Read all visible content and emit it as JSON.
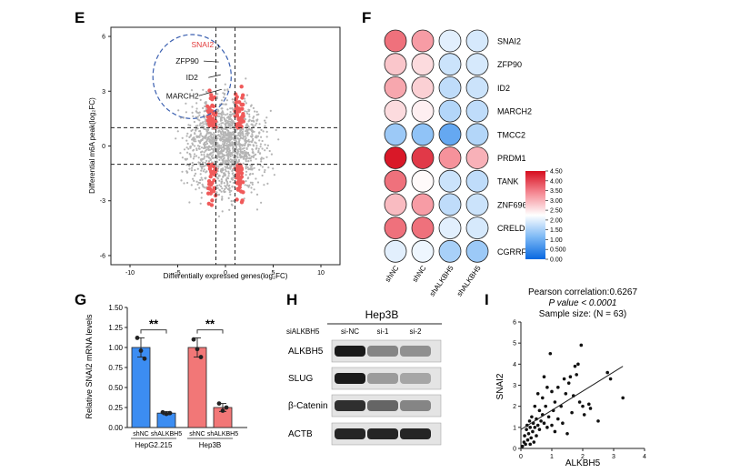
{
  "colors": {
    "red_point": "#f05a5a",
    "gray_point": "#b4b4b4",
    "blue_bar": "#3c8df2",
    "red_bar": "#f27777",
    "circle_outline": "#222222",
    "annotation": "#e23b3b"
  },
  "panels": {
    "E": "E",
    "F": "F",
    "G": "G",
    "H": "H",
    "I": "I"
  },
  "chart_data": [
    {
      "panel": "E",
      "type": "scatter",
      "xlabel": "Differentially expressed genes(log₂FC)",
      "ylabel": "Differential m6A peak(log₂FC)",
      "xlim": [
        -12,
        12
      ],
      "ylim": [
        -6.5,
        6.5
      ],
      "xticks": [
        -10,
        -5,
        0,
        5,
        10
      ],
      "yticks": [
        -6,
        -3,
        0,
        3,
        6
      ],
      "thresholds": {
        "x": [
          -1,
          1
        ],
        "y": [
          -1,
          1
        ]
      },
      "labeled_genes": [
        {
          "name": "SNAI2",
          "x": -0.8,
          "y": 5.3,
          "label_x": -2.4,
          "label_y": 5.4,
          "highlight": true
        },
        {
          "name": "ZFP90",
          "x": -0.7,
          "y": 4.6,
          "label_x": -4.0,
          "label_y": 4.5,
          "highlight": false
        },
        {
          "name": "ID2",
          "x": -0.5,
          "y": 3.9,
          "label_x": -3.5,
          "label_y": 3.6,
          "highlight": false
        },
        {
          "name": "MARCH2",
          "x": -0.4,
          "y": 3.1,
          "label_x": -4.5,
          "label_y": 2.6,
          "highlight": false
        }
      ],
      "highlight_ellipse": {
        "cx": -3.5,
        "cy": 3.8,
        "rx": 4.1,
        "ry": 2.3
      }
    },
    {
      "panel": "F",
      "type": "heatmap",
      "rows": [
        "SNAI2",
        "ZFP90",
        "ID2",
        "MARCH2",
        "TMCC2",
        "PRDM1",
        "TANK",
        "ZNF696",
        "CRELD1",
        "CGRRF1"
      ],
      "columns": [
        "shNC",
        "shNC",
        "shALKBH5",
        "shALKBH5"
      ],
      "values": [
        [
          3.6,
          3.2,
          2.0,
          1.9
        ],
        [
          2.8,
          2.6,
          1.8,
          1.9
        ],
        [
          3.1,
          2.7,
          1.7,
          1.8
        ],
        [
          2.6,
          2.4,
          1.6,
          1.7
        ],
        [
          1.4,
          1.3,
          0.9,
          1.6
        ],
        [
          4.4,
          4.1,
          3.3,
          3.0
        ],
        [
          3.6,
          2.3,
          1.8,
          1.7
        ],
        [
          2.9,
          3.2,
          1.7,
          1.8
        ],
        [
          3.6,
          3.6,
          2.0,
          1.9
        ],
        [
          2.0,
          2.1,
          1.5,
          1.4
        ]
      ],
      "colorbar": {
        "min": 0,
        "max": 4.5,
        "ticks": [
          "0.00",
          "0.500",
          "1.00",
          "1.50",
          "2.00",
          "2.50",
          "3.00",
          "3.50",
          "4.00",
          "4.50"
        ]
      }
    },
    {
      "panel": "G",
      "type": "bar",
      "ylabel": "Relative SNAI2 mRNA levels",
      "ylim": [
        0,
        1.5
      ],
      "yticks": [
        "0.00",
        "0.25",
        "0.50",
        "0.75",
        "1.00",
        "1.25",
        "1.50"
      ],
      "groups": [
        "HepG2.215",
        "Hep3B"
      ],
      "categories": [
        "shNC",
        "shALKBH5",
        "shNC",
        "shALKBH5"
      ],
      "values": [
        1.0,
        0.18,
        1.0,
        0.25
      ],
      "errors": [
        0.12,
        0.02,
        0.12,
        0.05
      ],
      "points": [
        [
          1.12,
          0.96,
          0.86
        ],
        [
          0.19,
          0.17,
          0.18
        ],
        [
          1.1,
          0.98,
          0.88
        ],
        [
          0.3,
          0.21,
          0.25
        ]
      ],
      "significance": [
        "**",
        "**"
      ]
    },
    {
      "panel": "I",
      "type": "scatter",
      "title_lines": [
        "Pearson correlation:0.6267",
        "P value < 0.0001",
        "Sample size: (N = 63)"
      ],
      "xlabel": "ALKBH5",
      "ylabel": "SNAI2",
      "xlim": [
        0,
        4
      ],
      "ylim": [
        0,
        6
      ],
      "xticks": [
        0,
        1,
        2,
        3,
        4
      ],
      "yticks": [
        0,
        1,
        2,
        3,
        4,
        5,
        6
      ],
      "trendline": [
        [
          0,
          0.9
        ],
        [
          3.3,
          3.9
        ]
      ],
      "points": [
        [
          0.05,
          0.1
        ],
        [
          0.1,
          0.3
        ],
        [
          0.12,
          0.6
        ],
        [
          0.15,
          0.2
        ],
        [
          0.18,
          0.9
        ],
        [
          0.2,
          1.1
        ],
        [
          0.22,
          0.4
        ],
        [
          0.25,
          0.7
        ],
        [
          0.28,
          1.3
        ],
        [
          0.3,
          0.2
        ],
        [
          0.3,
          1.0
        ],
        [
          0.33,
          0.5
        ],
        [
          0.35,
          1.5
        ],
        [
          0.38,
          0.8
        ],
        [
          0.4,
          1.2
        ],
        [
          0.42,
          0.3
        ],
        [
          0.45,
          2.0
        ],
        [
          0.45,
          1.0
        ],
        [
          0.5,
          1.4
        ],
        [
          0.5,
          0.6
        ],
        [
          0.55,
          2.6
        ],
        [
          0.55,
          1.1
        ],
        [
          0.6,
          1.8
        ],
        [
          0.6,
          0.9
        ],
        [
          0.65,
          1.3
        ],
        [
          0.7,
          2.4
        ],
        [
          0.7,
          1.6
        ],
        [
          0.75,
          3.4
        ],
        [
          0.75,
          1.2
        ],
        [
          0.8,
          2.0
        ],
        [
          0.85,
          1.0
        ],
        [
          0.85,
          2.9
        ],
        [
          0.9,
          1.5
        ],
        [
          0.95,
          4.5
        ],
        [
          1.0,
          1.1
        ],
        [
          1.0,
          2.7
        ],
        [
          1.05,
          1.8
        ],
        [
          1.1,
          0.8
        ],
        [
          1.1,
          2.2
        ],
        [
          1.2,
          1.4
        ],
        [
          1.2,
          2.9
        ],
        [
          1.3,
          2.0
        ],
        [
          1.35,
          1.2
        ],
        [
          1.4,
          3.3
        ],
        [
          1.45,
          2.6
        ],
        [
          1.5,
          0.7
        ],
        [
          1.55,
          3.1
        ],
        [
          1.6,
          3.4
        ],
        [
          1.65,
          1.7
        ],
        [
          1.7,
          2.5
        ],
        [
          1.75,
          3.9
        ],
        [
          1.8,
          3.5
        ],
        [
          1.85,
          4.0
        ],
        [
          1.9,
          2.2
        ],
        [
          1.95,
          4.9
        ],
        [
          2.0,
          2.0
        ],
        [
          2.05,
          1.6
        ],
        [
          2.2,
          2.1
        ],
        [
          2.25,
          1.9
        ],
        [
          2.5,
          1.3
        ],
        [
          2.8,
          3.6
        ],
        [
          2.9,
          3.3
        ],
        [
          3.3,
          2.4
        ]
      ]
    }
  ],
  "blot": {
    "cell_line": "Hep3B",
    "condition_label": "siALKBH5",
    "lanes": [
      "si-NC",
      "si-1",
      "si-2"
    ],
    "rows": [
      {
        "label": "ALKBH5",
        "intensities": [
          0.95,
          0.45,
          0.4
        ]
      },
      {
        "label": "SLUG",
        "intensities": [
          0.95,
          0.35,
          0.3
        ]
      },
      {
        "label": "β-Catenin",
        "intensities": [
          0.85,
          0.6,
          0.45
        ]
      },
      {
        "label": "ACTB",
        "intensities": [
          0.9,
          0.9,
          0.9
        ]
      }
    ]
  }
}
